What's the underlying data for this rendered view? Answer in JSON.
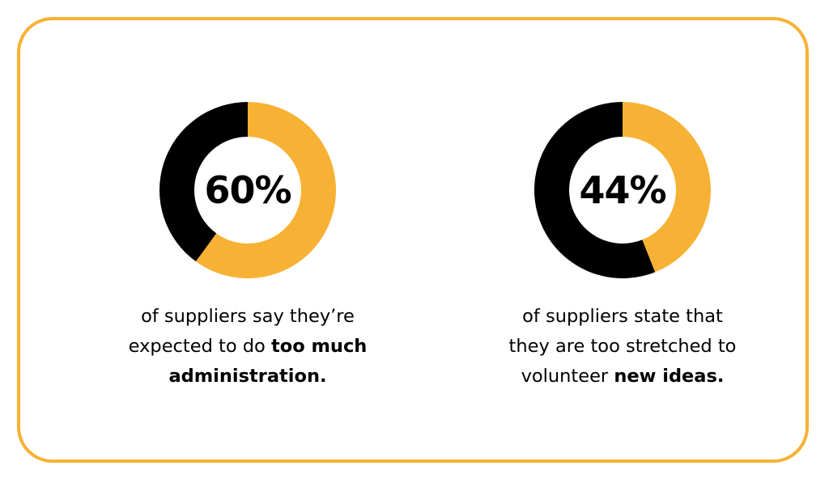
{
  "colors": {
    "border": "#f7b134",
    "accent": "#f7b134",
    "dark": "#000000",
    "background": "#ffffff"
  },
  "chart_data": [
    {
      "type": "pie",
      "donut": true,
      "labels": [
        "suppliers expected to do too much administration",
        "other"
      ],
      "values": [
        60,
        40
      ],
      "colors": [
        "#f7b134",
        "#000000"
      ],
      "center_label": "60%",
      "caption": {
        "line1": "of suppliers say they’re",
        "line2_plain": "expected to do ",
        "line2_bold": "too much",
        "line3_bold": "administration",
        "line3_plain": "."
      }
    },
    {
      "type": "pie",
      "donut": true,
      "labels": [
        "suppliers too stretched to volunteer new ideas",
        "other"
      ],
      "values": [
        44,
        56
      ],
      "colors": [
        "#f7b134",
        "#000000"
      ],
      "center_label": "44%",
      "caption": {
        "line1": "of suppliers state that",
        "line2_plain": "they are too stretched to",
        "line3_plain": "volunteer ",
        "line3_bold": "new ideas."
      }
    }
  ]
}
